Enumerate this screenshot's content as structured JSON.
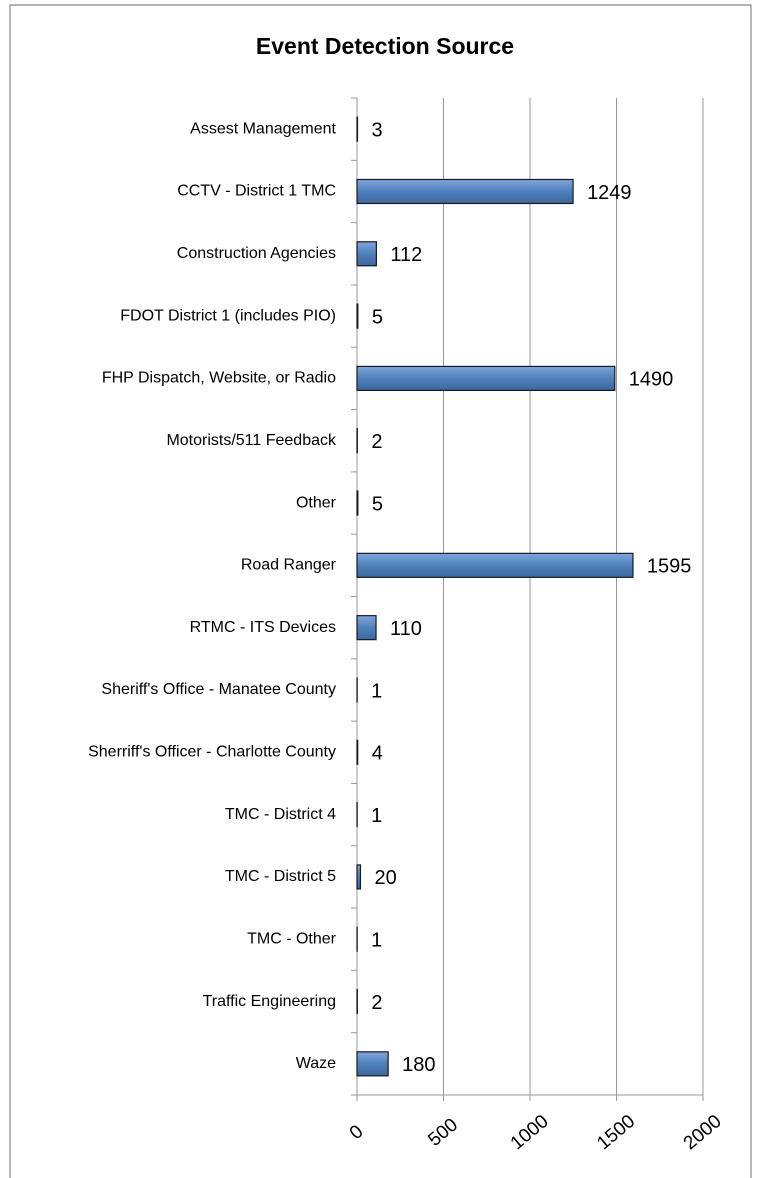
{
  "chart_data": {
    "type": "bar",
    "orientation": "horizontal",
    "title": "Event Detection Source",
    "categories": [
      "Assest Management",
      "CCTV - District 1 TMC",
      "Construction Agencies",
      "FDOT District 1 (includes PIO)",
      "FHP Dispatch, Website, or Radio",
      "Motorists/511 Feedback",
      "Other",
      "Road Ranger",
      "RTMC - ITS Devices",
      "Sheriff's Office - Manatee County",
      "Sherriff's Officer - Charlotte County",
      "TMC - District 4",
      "TMC - District 5",
      "TMC - Other",
      "Traffic Engineering",
      "Waze"
    ],
    "values": [
      3,
      1249,
      112,
      5,
      1490,
      2,
      5,
      1595,
      110,
      1,
      4,
      1,
      20,
      1,
      2,
      180
    ],
    "color": "#4f81bd",
    "xlim": [
      0,
      2000
    ],
    "xticks": [
      0,
      500,
      1000,
      1500,
      2000
    ],
    "grid": true
  }
}
